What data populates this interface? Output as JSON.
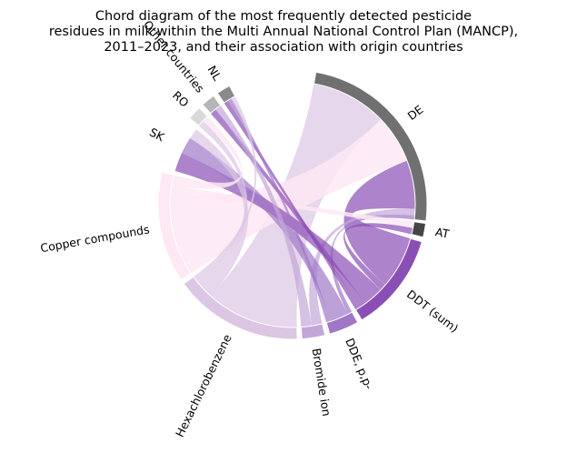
{
  "chart_data": {
    "type": "chord",
    "title_lines": [
      "Chord diagram of the most frequently detected pesticide",
      "residues in milk within the Multi Annual National Control Plan (MANCP),",
      "2011–2023, and their association with origin countries"
    ],
    "nodes": [
      {
        "id": "DE",
        "label": "DE",
        "group": "country",
        "color": "#707070",
        "start_deg": 10,
        "end_deg": 97
      },
      {
        "id": "AT",
        "label": "AT",
        "group": "country",
        "color": "#454545",
        "start_deg": 98,
        "end_deg": 104
      },
      {
        "id": "DDT",
        "label": "DDT (sum)",
        "group": "pesticide",
        "color": "#8a4fb5",
        "start_deg": 106,
        "end_deg": 149
      },
      {
        "id": "DDE",
        "label": "DDE, p,p-",
        "group": "pesticide",
        "color": "#a077c7",
        "start_deg": 151,
        "end_deg": 164
      },
      {
        "id": "BROMIDE",
        "label": "Bromide ion",
        "group": "pesticide",
        "color": "#c3a6d8",
        "start_deg": 166,
        "end_deg": 176
      },
      {
        "id": "HCB",
        "label": "Hexachlorobenzene",
        "group": "pesticide",
        "color": "#dcc6e4",
        "start_deg": 178,
        "end_deg": 234
      },
      {
        "id": "COPPER",
        "label": "Copper compounds",
        "group": "pesticide",
        "color": "#fde8f3",
        "start_deg": 236,
        "end_deg": 284
      },
      {
        "id": "SK",
        "label": "SK",
        "group": "country",
        "color": "#ffffff",
        "start_deg": 286,
        "end_deg": 308
      },
      {
        "id": "RO",
        "label": "RO",
        "group": "country",
        "color": "#d9d9d9",
        "start_deg": 310,
        "end_deg": 316
      },
      {
        "id": "OTHER",
        "label": "Other countries",
        "group": "country",
        "color": "#b5b5b5",
        "start_deg": 318,
        "end_deg": 324
      },
      {
        "id": "NL",
        "label": "NL",
        "group": "country",
        "color": "#8a8a8a",
        "start_deg": 326,
        "end_deg": 332
      }
    ],
    "links": [
      {
        "source": "HCB",
        "target": "DE",
        "value": 36
      },
      {
        "source": "COPPER",
        "target": "DE",
        "value": 23
      },
      {
        "source": "DDT",
        "target": "DE",
        "value": 23
      },
      {
        "source": "BROMIDE",
        "target": "DE",
        "value": 3
      },
      {
        "source": "DDE",
        "target": "DE",
        "value": 2
      },
      {
        "source": "COPPER",
        "target": "AT",
        "value": 3
      },
      {
        "source": "DDT",
        "target": "AT",
        "value": 3
      },
      {
        "source": "DDT",
        "target": "SK",
        "value": 9
      },
      {
        "source": "DDE",
        "target": "SK",
        "value": 8
      },
      {
        "source": "HCB",
        "target": "SK",
        "value": 5
      },
      {
        "source": "HCB",
        "target": "RO",
        "value": 3
      },
      {
        "source": "COPPER",
        "target": "RO",
        "value": 3
      },
      {
        "source": "DDT",
        "target": "OTHER",
        "value": 3
      },
      {
        "source": "BROMIDE",
        "target": "OTHER",
        "value": 3
      },
      {
        "source": "DDT",
        "target": "NL",
        "value": 2
      },
      {
        "source": "DDE",
        "target": "NL",
        "value": 2
      },
      {
        "source": "HCB",
        "target": "NL",
        "value": 2
      }
    ]
  }
}
